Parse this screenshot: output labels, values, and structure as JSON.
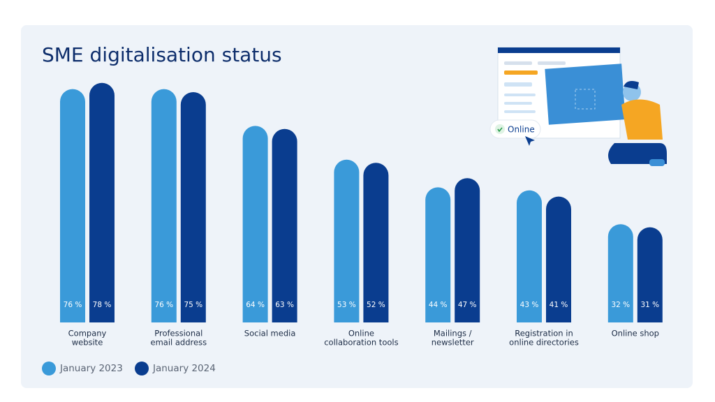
{
  "chart_data": {
    "type": "bar",
    "title": "SME digitalisation status",
    "categories": [
      [
        "Company",
        "website"
      ],
      [
        "Professional",
        "email address"
      ],
      [
        "Social media"
      ],
      [
        "Online",
        "collaboration tools"
      ],
      [
        "Mailings /",
        "newsletter"
      ],
      [
        "Registration in",
        "online directories"
      ],
      [
        "Online shop"
      ]
    ],
    "series": [
      {
        "name": "January 2023",
        "color": "#3a9ad9",
        "values": [
          76,
          76,
          64,
          53,
          44,
          43,
          32
        ],
        "value_labels": [
          "76 %",
          "76 %",
          "64 %",
          "53 %",
          "44 %",
          "43 %",
          "32 %"
        ]
      },
      {
        "name": "January 2024",
        "color": "#0a3d8f",
        "values": [
          78,
          75,
          63,
          52,
          47,
          41,
          31
        ],
        "value_labels": [
          "78 %",
          "75 %",
          "63 %",
          "52 %",
          "47 %",
          "41 %",
          "31 %"
        ]
      }
    ],
    "annotations": [
      "Online"
    ]
  }
}
